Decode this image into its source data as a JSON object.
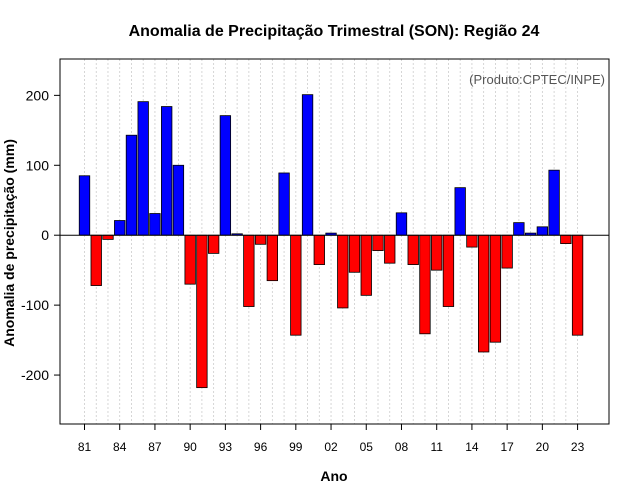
{
  "chart_data": {
    "type": "bar",
    "title": "Anomalia de Precipitação Trimestral (SON): Região 24",
    "xlabel": "Ano",
    "ylabel": "Anomalia de precipitação (mm)",
    "credit": "(Produto:CPTEC/INPE)",
    "ylim": [
      -270,
      252
    ],
    "yticks": [
      -200,
      -100,
      0,
      100,
      200
    ],
    "grid": true,
    "colors": {
      "positive": "#0000ff",
      "negative": "#ff0000",
      "outline": "#000000"
    },
    "x": [
      1981,
      1982,
      1983,
      1984,
      1985,
      1986,
      1987,
      1988,
      1989,
      1990,
      1991,
      1992,
      1993,
      1994,
      1995,
      1996,
      1997,
      1998,
      1999,
      2000,
      2001,
      2002,
      2003,
      2004,
      2005,
      2006,
      2007,
      2008,
      2009,
      2010,
      2011,
      2012,
      2013,
      2014,
      2015,
      2016,
      2017,
      2018,
      2019,
      2020,
      2021,
      2022,
      2023
    ],
    "values": [
      85,
      -72,
      -6,
      21,
      143,
      191,
      31,
      184,
      100,
      -70,
      -218,
      -26,
      171,
      2,
      -102,
      -13,
      -65,
      89,
      -143,
      201,
      -42,
      3,
      -104,
      -53,
      -86,
      -22,
      -40,
      32,
      -42,
      -141,
      -50,
      -102,
      68,
      -17,
      -167,
      -153,
      -47,
      18,
      3,
      12,
      93,
      -12,
      -143
    ],
    "xtick_labels": [
      "81",
      "84",
      "87",
      "90",
      "93",
      "96",
      "99",
      "02",
      "05",
      "08",
      "11",
      "14",
      "17",
      "20",
      "23"
    ]
  }
}
